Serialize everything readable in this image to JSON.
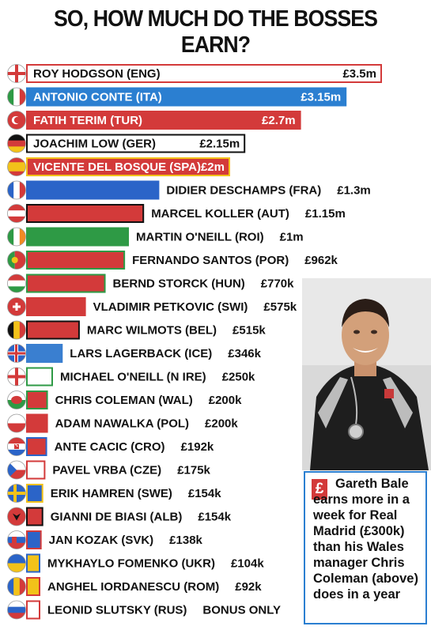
{
  "header": {
    "title": "SO, HOW MUCH DO THE BOSSES EARN?"
  },
  "chart_data": {
    "type": "bar",
    "orientation": "horizontal",
    "title": "SO, HOW MUCH DO THE BOSSES EARN?",
    "unit": "£m",
    "categories": [
      "ROY HODGSON (ENG)",
      "ANTONIO CONTE (ITA)",
      "FATIH TERIM (TUR)",
      "JOACHIM LOW (GER)",
      "VICENTE DEL BOSQUE (SPA)",
      "DIDIER DESCHAMPS (FRA)",
      "MARCEL KOLLER (AUT)",
      "MARTIN O'NEILL (ROI)",
      "FERNANDO SANTOS (POR)",
      "BERND STORCK (HUN)",
      "VLADIMIR PETKOVIC (SWI)",
      "MARC WILMOTS (BEL)",
      "LARS LAGERBACK (ICE)",
      "MICHAEL O'NEILL (N IRE)",
      "CHRIS COLEMAN (WAL)",
      "ADAM NAWALKA (POL)",
      "ANTE CACIC (CRO)",
      "PAVEL VRBA (CZE)",
      "ERIK HAMREN (SWE)",
      "GIANNI DE BIASI (ALB)",
      "JAN KOZAK (SVK)",
      "MYKHAYLO FOMENKO (UKR)",
      "ANGHEL IORDANESCU (ROM)",
      "LEONID SLUTSKY (RUS)"
    ],
    "values": [
      3.5,
      3.15,
      2.7,
      2.15,
      2.0,
      1.3,
      1.15,
      1.0,
      0.962,
      0.77,
      0.575,
      0.515,
      0.346,
      0.25,
      0.2,
      0.2,
      0.192,
      0.175,
      0.154,
      0.154,
      0.138,
      0.104,
      0.092,
      0
    ],
    "value_labels": [
      "£3.5m",
      "£3.15m",
      "£2.7m",
      "£2.15m",
      "£2m",
      "£1.3m",
      "£1.15m",
      "£1m",
      "£962k",
      "£770k",
      "£575k",
      "£515k",
      "£346k",
      "£250k",
      "£200k",
      "£200k",
      "£192k",
      "£175k",
      "£154k",
      "£154k",
      "£138k",
      "£104k",
      "£92k",
      "BONUS ONLY"
    ],
    "bar_fill_colors": [
      "#ffffff",
      "#2b7fd1",
      "#d33a3a",
      "#ffffff",
      "#d33a3a",
      "#2b64c8",
      "#d33a3a",
      "#2e9a45",
      "#d33a3a",
      "#d33a3a",
      "#d33a3a",
      "#d33a3a",
      "#3a7fd0",
      "#ffffff",
      "#d33a3a",
      "#d33a3a",
      "#d33a3a",
      "#ffffff",
      "#2b64c8",
      "#d33a3a",
      "#2b64c8",
      "#f2c21a",
      "#f2c21a",
      "#ffffff"
    ],
    "bar_border_colors": [
      "#d33a3a",
      "#2b7fd1",
      "#d33a3a",
      "#111111",
      "#f2c21a",
      "#2b64c8",
      "#111111",
      "#2e9a45",
      "#2e9a45",
      "#2e9a45",
      "#d33a3a",
      "#111111",
      "#3a7fd0",
      "#2e9a45",
      "#2e9a45",
      "#d33a3a",
      "#2b64c8",
      "#d33a3a",
      "#f2c21a",
      "#111111",
      "#d33a3a",
      "#2b64c8",
      "#d33a3a",
      "#d33a3a"
    ],
    "text_colors": [
      "#111111",
      "#ffffff",
      "#ffffff",
      "#111111",
      "#ffffff",
      "#111111",
      "#111111",
      "#111111",
      "#111111",
      "#111111",
      "#111111",
      "#111111",
      "#111111",
      "#111111",
      "#111111",
      "#111111",
      "#111111",
      "#111111",
      "#111111",
      "#111111",
      "#111111",
      "#111111",
      "#111111",
      "#111111"
    ],
    "flags": [
      "flag-eng",
      "flag-ita",
      "flag-tur",
      "flag-ger",
      "flag-spa",
      "flag-fra",
      "flag-aut",
      "flag-roi",
      "flag-por",
      "flag-hun",
      "flag-swi",
      "flag-bel",
      "flag-ice",
      "flag-nire",
      "flag-wal",
      "flag-pol",
      "flag-cro",
      "flag-cze",
      "flag-swe",
      "flag-alb",
      "flag-svk",
      "flag-ukr",
      "flag-rom",
      "flag-rus"
    ],
    "grid": false,
    "legend": "none"
  },
  "callout": {
    "icon": "£",
    "text": "Gareth Bale earns more in a week for Real Madrid (£300k) than his Wales manager Chris Coleman (above) does in a year"
  },
  "photo": {
    "description_icon": "manager-photo"
  }
}
